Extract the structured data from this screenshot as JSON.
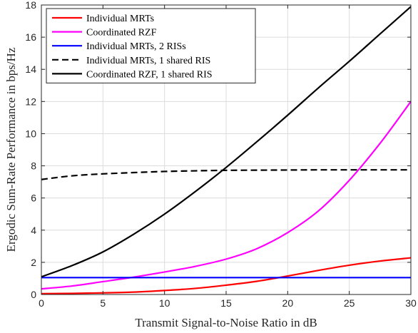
{
  "chart_data": {
    "type": "line",
    "title": "",
    "xlabel": "Transmit Signal-to-Noise Ratio in dB",
    "ylabel": "Ergodic Sum-Rate Performance in bps/Hz",
    "xlim": [
      0,
      30
    ],
    "ylim": [
      0,
      18
    ],
    "xticks": [
      0,
      5,
      10,
      15,
      20,
      25,
      30
    ],
    "yticks": [
      0,
      2,
      4,
      6,
      8,
      10,
      12,
      14,
      16,
      18
    ],
    "grid": true,
    "legend_position": "top-left",
    "x": [
      0,
      2.5,
      5,
      7.5,
      10,
      12.5,
      15,
      17.5,
      20,
      22.5,
      25,
      27.5,
      30
    ],
    "series": [
      {
        "name": "Individual MRTs",
        "color": "#ff0000",
        "dash": "solid",
        "values": [
          0.05,
          0.07,
          0.1,
          0.15,
          0.25,
          0.38,
          0.58,
          0.82,
          1.15,
          1.5,
          1.82,
          2.08,
          2.28
        ]
      },
      {
        "name": "Coordinated RZF",
        "color": "#ff00ff",
        "dash": "solid",
        "values": [
          0.35,
          0.53,
          0.8,
          1.08,
          1.4,
          1.75,
          2.2,
          2.85,
          3.85,
          5.2,
          7.1,
          9.4,
          12.0
        ]
      },
      {
        "name": "Individual MRTs, 2 RISs",
        "color": "#0000ff",
        "dash": "solid",
        "values": [
          1.05,
          1.05,
          1.05,
          1.05,
          1.05,
          1.05,
          1.05,
          1.05,
          1.05,
          1.05,
          1.05,
          1.05,
          1.05
        ]
      },
      {
        "name": "Individual MRTs, 1 shared RIS",
        "color": "#000000",
        "dash": "dashed",
        "values": [
          7.15,
          7.38,
          7.5,
          7.58,
          7.65,
          7.69,
          7.72,
          7.73,
          7.74,
          7.75,
          7.75,
          7.75,
          7.75
        ]
      },
      {
        "name": "Coordinated RZF, 1 shared RIS",
        "color": "#000000",
        "dash": "solid",
        "values": [
          1.1,
          1.8,
          2.65,
          3.75,
          5.0,
          6.4,
          7.9,
          9.5,
          11.15,
          12.85,
          14.5,
          16.2,
          17.9
        ]
      }
    ]
  }
}
